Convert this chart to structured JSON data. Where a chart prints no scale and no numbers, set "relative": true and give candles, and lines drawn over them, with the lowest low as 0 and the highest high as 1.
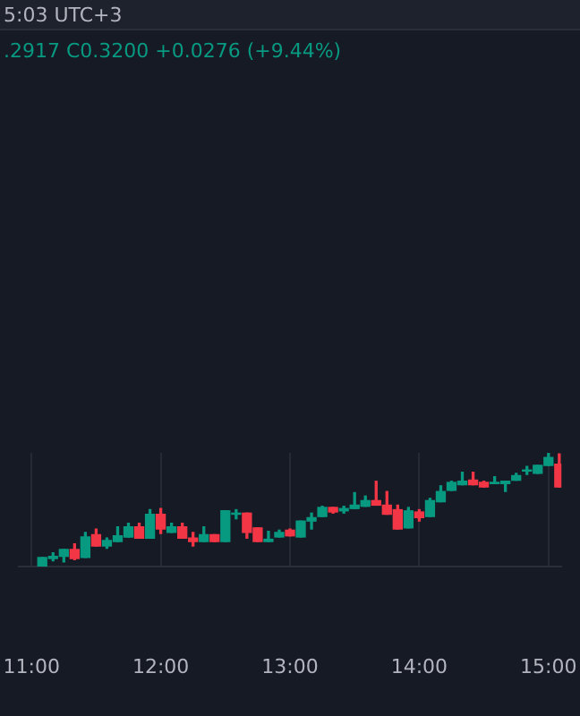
{
  "chart_data": {
    "type": "candlestick",
    "relative": true,
    "annotations": [
      "5:03 UTC+3",
      ".2917 C0.3200 +0.0276 (+9.44%)"
    ],
    "x": [
      11.0833,
      11.1667,
      11.25,
      11.3333,
      11.4167,
      11.5,
      11.5833,
      11.6667,
      11.75,
      11.8333,
      11.9167,
      12,
      12.0833,
      12.1667,
      12.25,
      12.3333,
      12.4167,
      12.5,
      12.5833,
      12.6667,
      12.75,
      12.8333,
      12.9167,
      13,
      13.0833,
      13.1667,
      13.25,
      13.3333,
      13.4167,
      13.5,
      13.5833,
      13.6667,
      13.75,
      13.8333,
      13.9167,
      14,
      14.0833,
      14.1667,
      14.25,
      14.3333,
      14.4167,
      14.5,
      14.5833,
      14.6667,
      14.75,
      14.8333,
      14.9167,
      15,
      15.0833
    ],
    "ohlc": [
      [
        0,
        0.08,
        0,
        0.08
      ],
      [
        0.07,
        0.12,
        0.05,
        0.09
      ],
      [
        0.09,
        0.15,
        0.04,
        0.15
      ],
      [
        0.15,
        0.2,
        0.06,
        0.07
      ],
      [
        0.08,
        0.3,
        0.08,
        0.26
      ],
      [
        0.28,
        0.33,
        0.18,
        0.18
      ],
      [
        0.18,
        0.25,
        0.16,
        0.23
      ],
      [
        0.22,
        0.35,
        0.22,
        0.27
      ],
      [
        0.26,
        0.38,
        0.26,
        0.35
      ],
      [
        0.35,
        0.38,
        0.25,
        0.25
      ],
      [
        0.25,
        0.5,
        0.25,
        0.46
      ],
      [
        0.46,
        0.51,
        0.29,
        0.33
      ],
      [
        0.3,
        0.38,
        0.3,
        0.35
      ],
      [
        0.35,
        0.38,
        0.25,
        0.25
      ],
      [
        0.25,
        0.3,
        0.18,
        0.22
      ],
      [
        0.22,
        0.35,
        0.22,
        0.28
      ],
      [
        0.28,
        0.28,
        0.22,
        0.22
      ],
      [
        0.22,
        0.49,
        0.22,
        0.49
      ],
      [
        0.46,
        0.5,
        0.42,
        0.47
      ],
      [
        0.47,
        0.47,
        0.25,
        0.3
      ],
      [
        0.34,
        0.34,
        0.22,
        0.22
      ],
      [
        0.22,
        0.31,
        0.22,
        0.24
      ],
      [
        0.26,
        0.32,
        0.26,
        0.3
      ],
      [
        0.32,
        0.33,
        0.27,
        0.27
      ],
      [
        0.26,
        0.4,
        0.26,
        0.4
      ],
      [
        0.4,
        0.47,
        0.33,
        0.43
      ],
      [
        0.44,
        0.53,
        0.44,
        0.52
      ],
      [
        0.52,
        0.52,
        0.47,
        0.48
      ],
      [
        0.49,
        0.53,
        0.47,
        0.51
      ],
      [
        0.51,
        0.65,
        0.51,
        0.54
      ],
      [
        0.53,
        0.62,
        0.53,
        0.58
      ],
      [
        0.58,
        0.75,
        0.54,
        0.54
      ],
      [
        0.54,
        0.66,
        0.46,
        0.46
      ],
      [
        0.5,
        0.54,
        0.33,
        0.33
      ],
      [
        0.34,
        0.52,
        0.34,
        0.49
      ],
      [
        0.48,
        0.5,
        0.4,
        0.43
      ],
      [
        0.44,
        0.6,
        0.44,
        0.58
      ],
      [
        0.57,
        0.71,
        0.57,
        0.66
      ],
      [
        0.67,
        0.75,
        0.67,
        0.74
      ],
      [
        0.72,
        0.83,
        0.72,
        0.75
      ],
      [
        0.76,
        0.83,
        0.72,
        0.72
      ],
      [
        0.74,
        0.75,
        0.7,
        0.7
      ],
      [
        0.73,
        0.79,
        0.73,
        0.74
      ],
      [
        0.73,
        0.75,
        0.66,
        0.75
      ],
      [
        0.76,
        0.82,
        0.76,
        0.8
      ],
      [
        0.84,
        0.88,
        0.81,
        0.85
      ],
      [
        0.82,
        0.89,
        0.82,
        0.89
      ],
      [
        0.89,
        1,
        0.89,
        0.96
      ],
      [
        0.9,
        0.99,
        0.7,
        0.7
      ]
    ],
    "colors": [
      "#089981",
      "#089981",
      "#089981",
      "#f23645",
      "#089981",
      "#f23645",
      "#089981",
      "#089981",
      "#089981",
      "#f23645",
      "#089981",
      "#f23645",
      "#089981",
      "#f23645",
      "#f23645",
      "#089981",
      "#f23645",
      "#089981",
      "#089981",
      "#f23645",
      "#f23645",
      "#089981",
      "#089981",
      "#f23645",
      "#089981",
      "#089981",
      "#089981",
      "#f23645",
      "#089981",
      "#089981",
      "#089981",
      "#f23645",
      "#f23645",
      "#f23645",
      "#089981",
      "#f23645",
      "#089981",
      "#089981",
      "#089981",
      "#089981",
      "#f23645",
      "#f23645",
      "#089981",
      "#089981",
      "#089981",
      "#089981",
      "#089981",
      "#089981",
      "#f23645"
    ],
    "xlim": [
      10.9,
      15.1
    ],
    "xticks": [
      {
        "value": 11,
        "label": "11:00"
      },
      {
        "value": 12,
        "label": "12:00"
      },
      {
        "value": 13,
        "label": "13:00"
      },
      {
        "value": 14,
        "label": "14:00"
      },
      {
        "value": 15,
        "label": "15:00"
      }
    ],
    "grid": "x"
  }
}
